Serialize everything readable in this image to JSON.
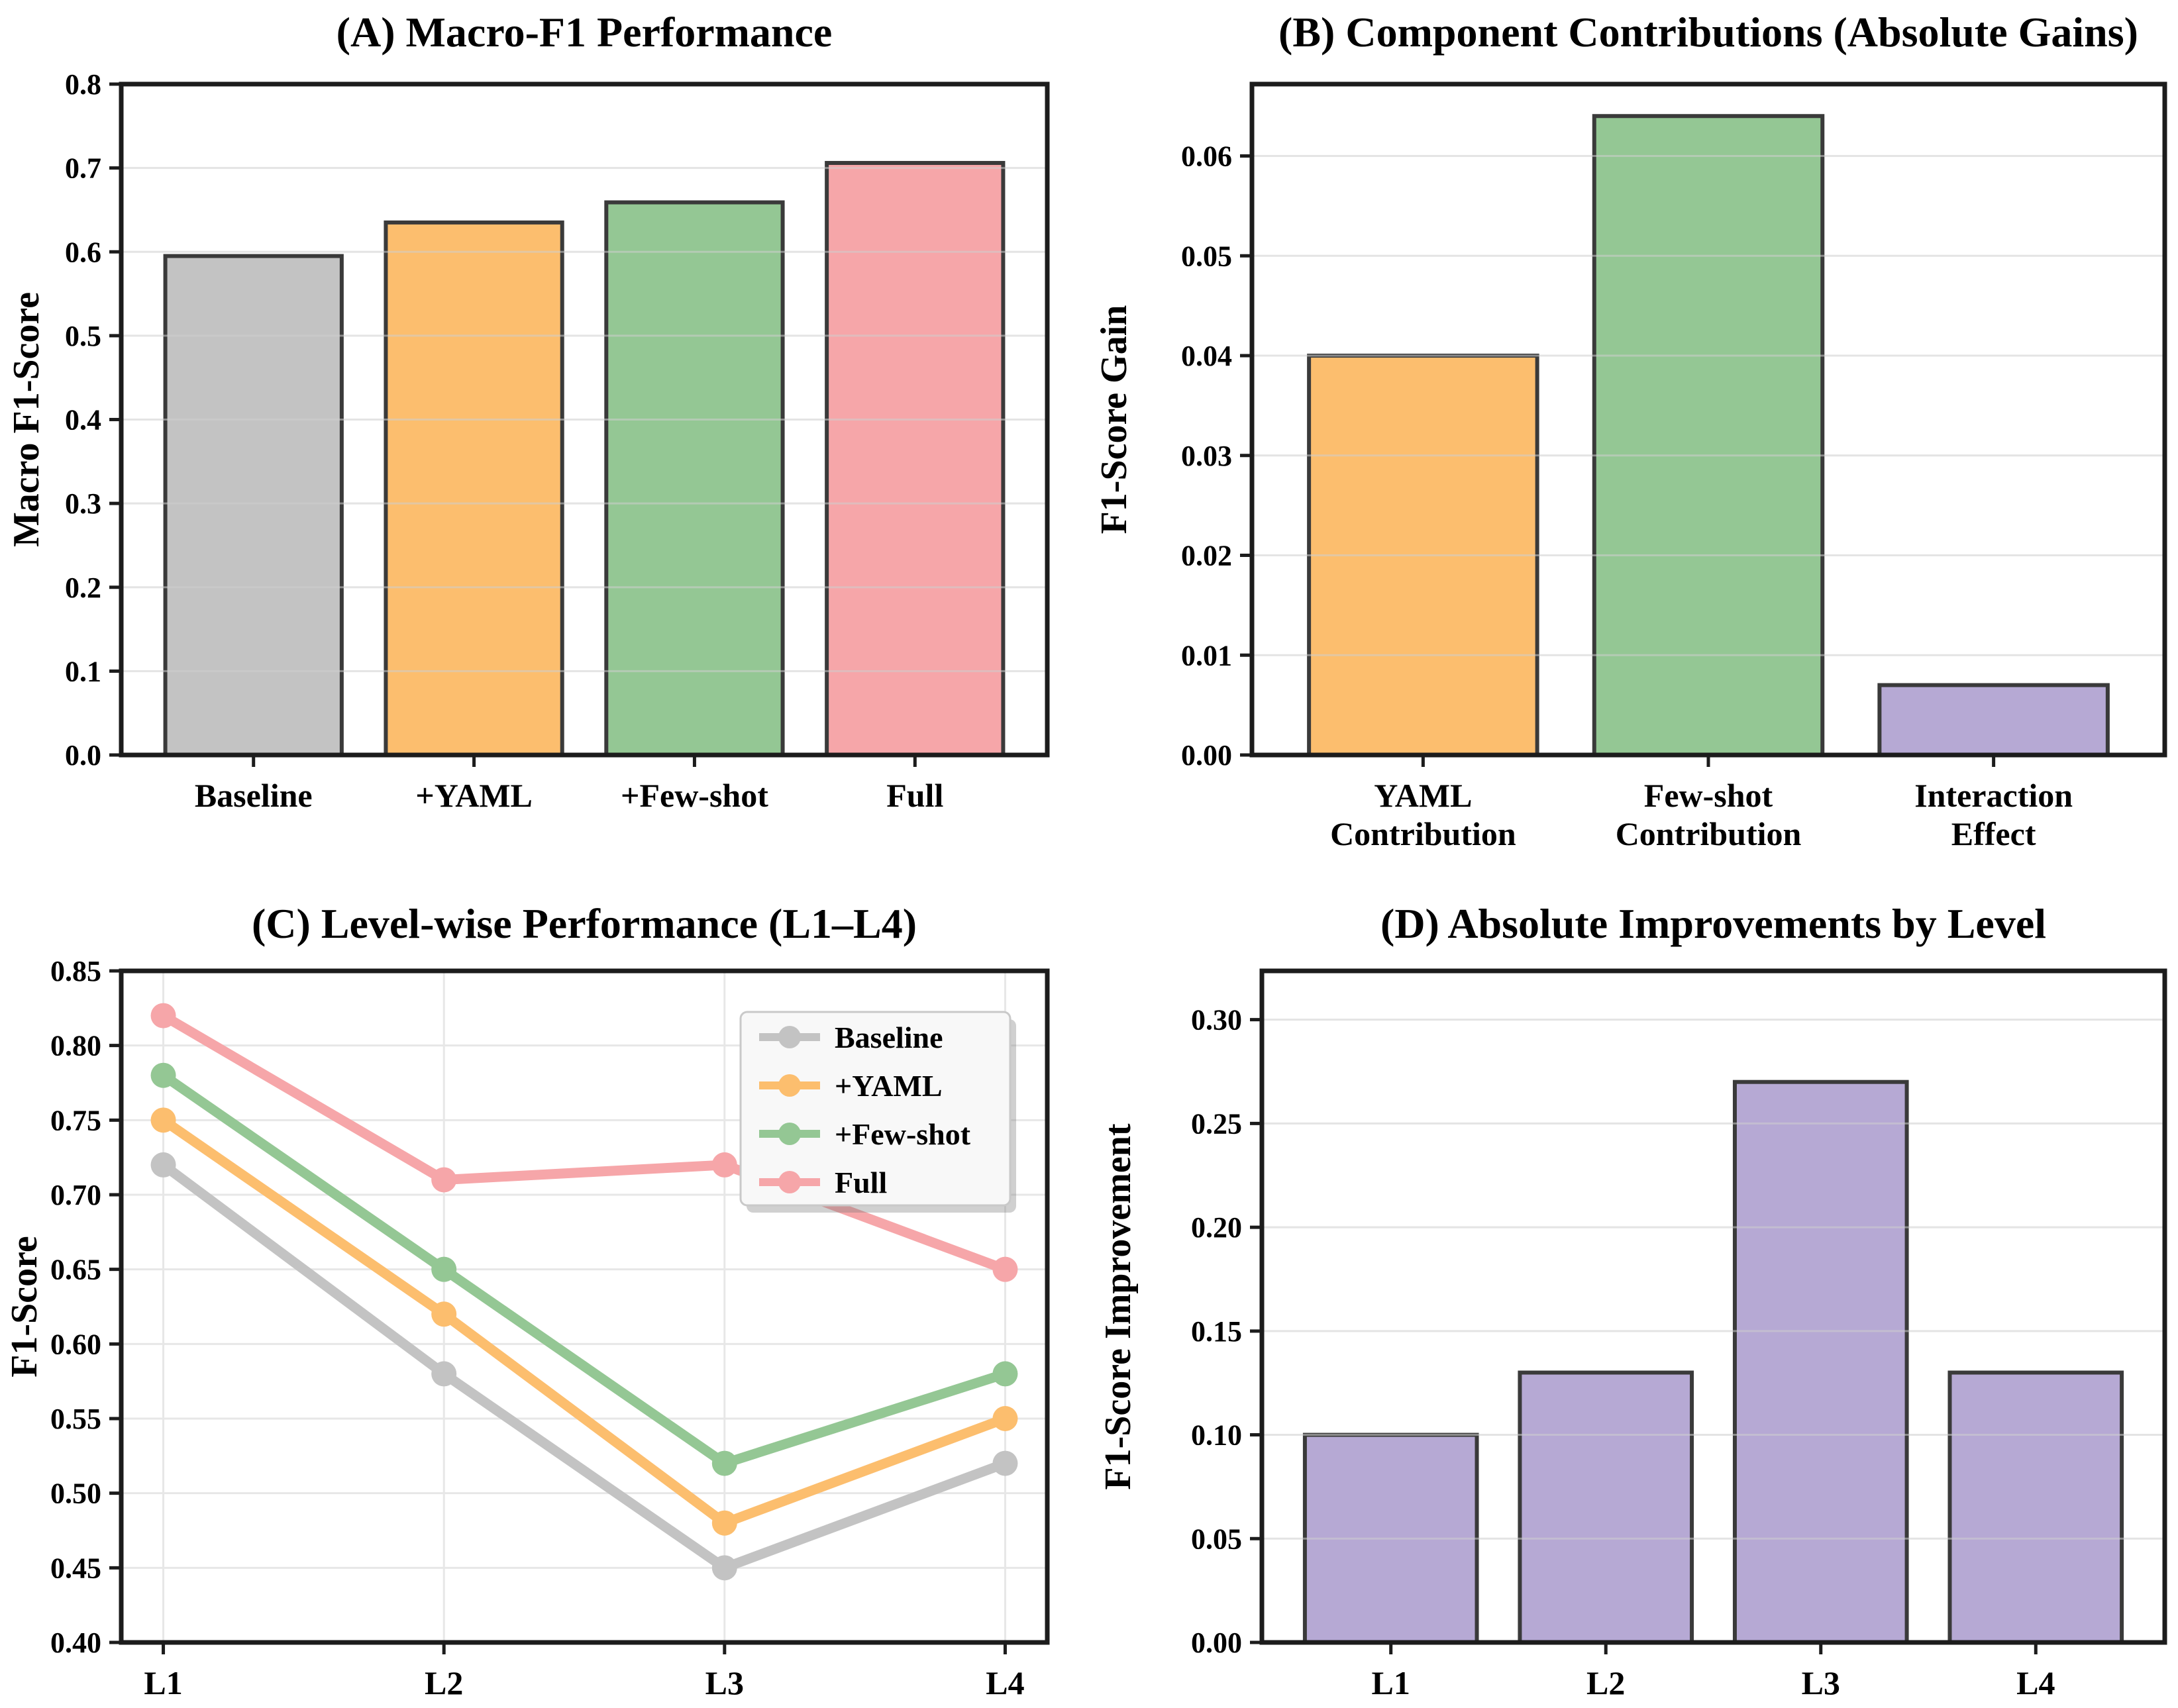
{
  "figure": {
    "background": "#ffffff",
    "spine_color": "#1c1c1c",
    "grid_color": "#e7e7e7",
    "bar_edge_color": "#3a3a3a"
  },
  "chart_data": [
    {
      "id": "A",
      "type": "bar",
      "title": "(A) Macro-F1 Performance",
      "xlabel": "",
      "ylabel": "Macro F1-Score",
      "categories": [
        "Baseline",
        "+YAML",
        "+Few-shot",
        "Full"
      ],
      "values": [
        0.595,
        0.635,
        0.659,
        0.706
      ],
      "bar_colors": [
        "#c3c3c3",
        "#fcbe6e",
        "#94c794",
        "#f6a6a9"
      ],
      "ylim": [
        0.0,
        0.8
      ],
      "ytick_step": 0.1,
      "ytick_decimals": 1,
      "grid": "horizontal",
      "legend_position": "none"
    },
    {
      "id": "B",
      "type": "bar",
      "title": "(B) Component Contributions (Absolute Gains)",
      "xlabel": "",
      "ylabel": "F1-Score Gain",
      "categories": [
        "YAML\nContribution",
        "Few-shot\nContribution",
        "Interaction\nEffect"
      ],
      "values": [
        0.04,
        0.064,
        0.007
      ],
      "bar_colors": [
        "#fcbe6e",
        "#94c794",
        "#b6a9d4"
      ],
      "ylim": [
        0.0,
        0.0672
      ],
      "ytick_step": 0.01,
      "ytick_decimals": 2,
      "grid": "horizontal",
      "legend_position": "none"
    },
    {
      "id": "C",
      "type": "line",
      "title": "(C) Level-wise Performance (L1–L4)",
      "xlabel": "",
      "ylabel": "F1-Score",
      "categories": [
        "L1",
        "L2",
        "L3",
        "L4"
      ],
      "series": [
        {
          "name": "Baseline",
          "color": "#c3c3c3",
          "values": [
            0.72,
            0.58,
            0.45,
            0.52
          ]
        },
        {
          "name": "+YAML",
          "color": "#fcbe6e",
          "values": [
            0.75,
            0.62,
            0.48,
            0.55
          ]
        },
        {
          "name": "+Few-shot",
          "color": "#94c794",
          "values": [
            0.78,
            0.65,
            0.52,
            0.58
          ]
        },
        {
          "name": "Full",
          "color": "#f6a6a9",
          "values": [
            0.82,
            0.71,
            0.72,
            0.65
          ]
        }
      ],
      "ylim": [
        0.4,
        0.85
      ],
      "ytick_step": 0.05,
      "ytick_decimals": 2,
      "grid": "both",
      "legend_position": "top-right"
    },
    {
      "id": "D",
      "type": "bar",
      "title": "(D) Absolute Improvements by Level",
      "xlabel": "",
      "ylabel": "F1-Score Improvement",
      "categories": [
        "L1",
        "L2",
        "L3",
        "L4"
      ],
      "values": [
        0.1,
        0.13,
        0.27,
        0.13
      ],
      "bar_colors": [
        "#b6a9d4",
        "#b6a9d4",
        "#b6a9d4",
        "#b6a9d4"
      ],
      "ylim": [
        0.0,
        0.3235
      ],
      "ytick_step": 0.05,
      "ytick_decimals": 2,
      "grid": "horizontal",
      "legend_position": "none"
    }
  ]
}
